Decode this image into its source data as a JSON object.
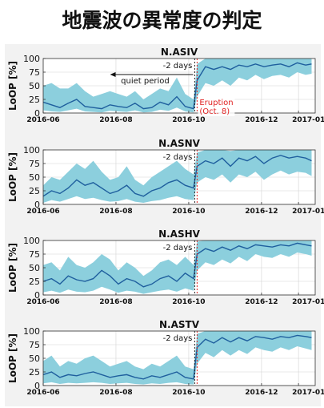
{
  "page_title": "地震波の異常度の判定",
  "colors": {
    "band": "#8ccfdd",
    "line": "#1f5f9e",
    "eruption_line": "#dd2222",
    "dashed_line": "#222222",
    "annotation_red": "#e02020",
    "panel_bg": "#f2f2f2"
  },
  "chart_data": [
    {
      "type": "line",
      "title": "N.ASIV",
      "ylabel": "LoOP [%]",
      "xlim": [
        "2016-06-01",
        "2017-01-15"
      ],
      "ylim": [
        0,
        100
      ],
      "yticks": [
        0,
        25,
        50,
        75,
        100
      ],
      "xtick_labels": [
        "2016-06",
        "2016-08",
        "2016-10",
        "2016-12",
        "2017-01"
      ],
      "xtick_dates": [
        "2016-06-01",
        "2016-08-01",
        "2016-10-01",
        "2016-12-01",
        "2017-01-01"
      ],
      "grid": true,
      "markers": {
        "eruption_date": "2016-10-08",
        "minus_two_days_date": "2016-10-06"
      },
      "annotations": [
        {
          "text": "-2 days"
        },
        {
          "text": "quiet period"
        },
        {
          "text": "Eruption"
        },
        {
          "text": "(Oct. 8)"
        }
      ],
      "series": [
        {
          "x": [
            "2016-06-01",
            "2016-06-08",
            "2016-06-15",
            "2016-06-22",
            "2016-06-29",
            "2016-07-06",
            "2016-07-13",
            "2016-07-20",
            "2016-07-27",
            "2016-08-03",
            "2016-08-10",
            "2016-08-17",
            "2016-08-24",
            "2016-08-31",
            "2016-09-07",
            "2016-09-14",
            "2016-09-21",
            "2016-09-28",
            "2016-10-05",
            "2016-10-08",
            "2016-10-15",
            "2016-10-22",
            "2016-10-29",
            "2016-11-05",
            "2016-11-12",
            "2016-11-19",
            "2016-11-26",
            "2016-12-03",
            "2016-12-10",
            "2016-12-17",
            "2016-12-24",
            "2016-12-31",
            "2017-01-07",
            "2017-01-12"
          ],
          "values": [
            20,
            15,
            10,
            18,
            25,
            12,
            10,
            8,
            15,
            12,
            10,
            18,
            8,
            10,
            20,
            15,
            30,
            12,
            8,
            60,
            85,
            80,
            85,
            80,
            88,
            85,
            90,
            85,
            88,
            90,
            85,
            92,
            88,
            90
          ],
          "upper": [
            50,
            55,
            45,
            45,
            55,
            40,
            30,
            35,
            40,
            35,
            30,
            40,
            25,
            35,
            45,
            40,
            65,
            35,
            25,
            90,
            100,
            100,
            100,
            100,
            100,
            100,
            100,
            100,
            100,
            100,
            100,
            100,
            100,
            100
          ],
          "lower": [
            5,
            3,
            2,
            5,
            8,
            3,
            2,
            1,
            4,
            3,
            2,
            5,
            1,
            2,
            6,
            4,
            10,
            3,
            1,
            30,
            55,
            50,
            60,
            50,
            65,
            60,
            70,
            62,
            68,
            70,
            65,
            75,
            70,
            72
          ]
        }
      ]
    },
    {
      "type": "line",
      "title": "N.ASNV",
      "ylabel": "LoOP [%]",
      "xlim": [
        "2016-06-01",
        "2017-01-15"
      ],
      "ylim": [
        0,
        100
      ],
      "yticks": [
        0,
        25,
        50,
        75,
        100
      ],
      "xtick_labels": [
        "2016-06",
        "2016-08",
        "2016-10",
        "2016-12",
        "2017-01"
      ],
      "xtick_dates": [
        "2016-06-01",
        "2016-08-01",
        "2016-10-01",
        "2016-12-01",
        "2017-01-01"
      ],
      "grid": true,
      "markers": {
        "eruption_date": "2016-10-08",
        "minus_two_days_date": "2016-10-06"
      },
      "annotations": [
        {
          "text": "-2 days"
        }
      ],
      "series": [
        {
          "x": [
            "2016-06-01",
            "2016-06-08",
            "2016-06-15",
            "2016-06-22",
            "2016-06-29",
            "2016-07-06",
            "2016-07-13",
            "2016-07-20",
            "2016-07-27",
            "2016-08-03",
            "2016-08-10",
            "2016-08-17",
            "2016-08-24",
            "2016-08-31",
            "2016-09-07",
            "2016-09-14",
            "2016-09-21",
            "2016-09-28",
            "2016-10-05",
            "2016-10-08",
            "2016-10-15",
            "2016-10-22",
            "2016-10-29",
            "2016-11-05",
            "2016-11-12",
            "2016-11-19",
            "2016-11-26",
            "2016-12-03",
            "2016-12-10",
            "2016-12-17",
            "2016-12-24",
            "2016-12-31",
            "2017-01-07",
            "2017-01-12"
          ],
          "values": [
            15,
            25,
            20,
            30,
            45,
            35,
            40,
            30,
            20,
            25,
            35,
            20,
            15,
            25,
            30,
            40,
            45,
            35,
            30,
            70,
            80,
            75,
            85,
            70,
            85,
            80,
            88,
            75,
            85,
            90,
            85,
            88,
            85,
            80
          ],
          "upper": [
            35,
            50,
            45,
            60,
            75,
            65,
            80,
            60,
            45,
            50,
            70,
            45,
            35,
            50,
            60,
            70,
            80,
            65,
            55,
            95,
            100,
            100,
            100,
            98,
            100,
            100,
            100,
            100,
            100,
            100,
            100,
            100,
            100,
            100
          ],
          "lower": [
            3,
            8,
            5,
            10,
            15,
            10,
            12,
            8,
            5,
            6,
            10,
            5,
            3,
            6,
            8,
            12,
            15,
            10,
            8,
            40,
            50,
            45,
            55,
            40,
            55,
            50,
            60,
            45,
            55,
            62,
            55,
            60,
            58,
            52
          ]
        }
      ]
    },
    {
      "type": "line",
      "title": "N.ASHV",
      "ylabel": "LoOP [%]",
      "xlim": [
        "2016-06-01",
        "2017-01-15"
      ],
      "ylim": [
        0,
        100
      ],
      "yticks": [
        0,
        25,
        50,
        75,
        100
      ],
      "xtick_labels": [
        "2016-06",
        "2016-08",
        "2016-10",
        "2016-12",
        "2017-01"
      ],
      "xtick_dates": [
        "2016-06-01",
        "2016-08-01",
        "2016-10-01",
        "2016-12-01",
        "2017-01-01"
      ],
      "grid": true,
      "markers": {
        "eruption_date": "2016-10-08",
        "minus_two_days_date": "2016-10-06"
      },
      "annotations": [
        {
          "text": "-2 days"
        }
      ],
      "series": [
        {
          "x": [
            "2016-06-01",
            "2016-06-08",
            "2016-06-15",
            "2016-06-22",
            "2016-06-29",
            "2016-07-06",
            "2016-07-13",
            "2016-07-20",
            "2016-07-27",
            "2016-08-03",
            "2016-08-10",
            "2016-08-17",
            "2016-08-24",
            "2016-08-31",
            "2016-09-07",
            "2016-09-14",
            "2016-09-21",
            "2016-09-28",
            "2016-10-05",
            "2016-10-08",
            "2016-10-15",
            "2016-10-22",
            "2016-10-29",
            "2016-11-05",
            "2016-11-12",
            "2016-11-19",
            "2016-11-26",
            "2016-12-03",
            "2016-12-10",
            "2016-12-17",
            "2016-12-24",
            "2016-12-31",
            "2017-01-07",
            "2017-01-12"
          ],
          "values": [
            25,
            30,
            20,
            35,
            28,
            25,
            30,
            45,
            35,
            20,
            30,
            25,
            15,
            20,
            30,
            35,
            25,
            40,
            30,
            75,
            85,
            80,
            88,
            82,
            90,
            85,
            92,
            90,
            88,
            92,
            90,
            95,
            92,
            90
          ],
          "upper": [
            55,
            60,
            45,
            70,
            55,
            50,
            60,
            75,
            65,
            45,
            60,
            50,
            35,
            45,
            60,
            65,
            55,
            70,
            55,
            98,
            100,
            100,
            100,
            100,
            100,
            100,
            100,
            100,
            100,
            100,
            100,
            100,
            100,
            100
          ],
          "lower": [
            5,
            8,
            4,
            10,
            6,
            5,
            8,
            15,
            10,
            4,
            8,
            6,
            2,
            5,
            8,
            10,
            6,
            12,
            8,
            45,
            60,
            55,
            65,
            58,
            70,
            62,
            75,
            70,
            68,
            75,
            70,
            78,
            75,
            72
          ]
        }
      ]
    },
    {
      "type": "line",
      "title": "N.ASTV",
      "ylabel": "LoOP [%]",
      "xlim": [
        "2016-06-01",
        "2017-01-15"
      ],
      "ylim": [
        0,
        100
      ],
      "yticks": [
        0,
        25,
        50,
        75,
        100
      ],
      "xtick_labels": [
        "2016-06",
        "2016-08",
        "2016-10",
        "2016-12",
        "2017-01"
      ],
      "xtick_dates": [
        "2016-06-01",
        "2016-08-01",
        "2016-10-01",
        "2016-12-01",
        "2017-01-01"
      ],
      "grid": true,
      "markers": {
        "eruption_date": "2016-10-08",
        "minus_two_days_date": "2016-10-06"
      },
      "annotations": [
        {
          "text": "-2 days"
        }
      ],
      "series": [
        {
          "x": [
            "2016-06-01",
            "2016-06-08",
            "2016-06-15",
            "2016-06-22",
            "2016-06-29",
            "2016-07-06",
            "2016-07-13",
            "2016-07-20",
            "2016-07-27",
            "2016-08-03",
            "2016-08-10",
            "2016-08-17",
            "2016-08-24",
            "2016-08-31",
            "2016-09-07",
            "2016-09-14",
            "2016-09-21",
            "2016-09-28",
            "2016-10-05",
            "2016-10-08",
            "2016-10-15",
            "2016-10-22",
            "2016-10-29",
            "2016-11-05",
            "2016-11-12",
            "2016-11-19",
            "2016-11-26",
            "2016-12-03",
            "2016-12-10",
            "2016-12-17",
            "2016-12-24",
            "2016-12-31",
            "2017-01-07",
            "2017-01-12"
          ],
          "values": [
            20,
            25,
            15,
            20,
            18,
            22,
            25,
            20,
            15,
            18,
            20,
            15,
            12,
            18,
            15,
            20,
            25,
            15,
            12,
            70,
            85,
            78,
            88,
            80,
            88,
            82,
            90,
            88,
            85,
            90,
            88,
            92,
            90,
            88
          ],
          "upper": [
            45,
            55,
            35,
            45,
            40,
            50,
            55,
            45,
            35,
            40,
            45,
            35,
            30,
            40,
            35,
            45,
            55,
            35,
            30,
            95,
            100,
            100,
            100,
            100,
            100,
            100,
            100,
            100,
            100,
            100,
            100,
            100,
            100,
            100
          ],
          "lower": [
            4,
            6,
            3,
            5,
            4,
            5,
            6,
            5,
            3,
            4,
            5,
            3,
            2,
            4,
            3,
            5,
            6,
            3,
            2,
            40,
            60,
            52,
            65,
            55,
            65,
            58,
            70,
            65,
            62,
            70,
            65,
            72,
            68,
            65
          ]
        }
      ]
    }
  ]
}
